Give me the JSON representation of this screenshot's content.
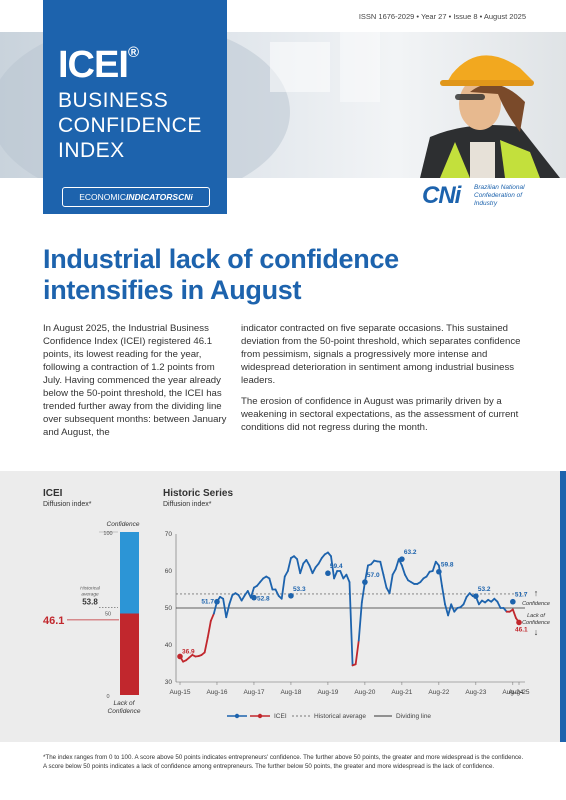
{
  "header": {
    "issn_line": "ISSN 1676-2029 • Year 27 • Issue 8 • August 2025",
    "brand": {
      "main": "ICEI",
      "reg": "®",
      "line1": "BUSINESS",
      "line2": "CONFIDENCE",
      "line3": "INDEX"
    },
    "econ_label_a": "ECONOMIC",
    "econ_label_b": "INDICATORS",
    "econ_label_c": "CNi",
    "cni_logo": "CNi",
    "cni_name": "Brazilian National Confederation of Industry"
  },
  "headline": "Industrial lack of confidence intensifies in August",
  "body": {
    "col1_p1": "In August 2025, the Industrial Business Confidence Index (ICEI) registered 46.1 points, its lowest reading for the year, following a contraction of 1.2 points from July. Having commenced the year already below the 50-point threshold, the ICEI has trended further away from the dividing line over subsequent months: between January and August, the",
    "col2_p1": "indicator contracted on five separate occasions. This sustained deviation from the 50-point threshold, which separates confidence from pessimism, signals a progressively more intense and widespread deterioration in sentiment among industrial business leaders.",
    "col2_p2": "The erosion of confidence in August was primarily driven by a weakening in sectoral expectations, as the assessment of current conditions did not regress during the month."
  },
  "gauge": {
    "title": "ICEI",
    "subtitle": "Diffusion index*",
    "top_label": "Confidence",
    "bottom_label_1": "Lack of",
    "bottom_label_2": "Confidence",
    "tick_100": "100",
    "tick_50": "50",
    "tick_0": "0",
    "hist_label_1": "Historical",
    "hist_label_2": "average",
    "hist_value": "53.8",
    "current_value": "46.1",
    "current_fraction": 0.461,
    "hist_fraction": 0.538
  },
  "historic": {
    "title": "Historic Series",
    "subtitle": "Diffusion index*",
    "legend_icei": "ICEI",
    "legend_hist": "Historical average",
    "legend_div": "Dividing line",
    "arrow_up_label": "Confidence",
    "arrow_down_label_1": "Lack of",
    "arrow_down_label_2": "Confidence"
  },
  "chart_data": {
    "type": "line",
    "xlabel": "",
    "ylabel": "",
    "ylim": [
      30,
      70
    ],
    "yticks": [
      "30",
      "40",
      "50",
      "60",
      "70"
    ],
    "x_tick_labels": [
      "Aug-15",
      "Aug-16",
      "Aug-17",
      "Aug-18",
      "Aug-19",
      "Aug-20",
      "Aug-21",
      "Aug-22",
      "Aug-23",
      "Aug-24",
      "Aug-25"
    ],
    "historical_average": 53.8,
    "dividing_line": 50,
    "grid": false,
    "legend_position": "bottom",
    "colors": {
      "above": "#1d63ad",
      "below": "#c1272d",
      "hist": "#777777",
      "divider": "#333333"
    },
    "series": [
      {
        "name": "ICEI",
        "start": "Aug-15",
        "values": [
          36.9,
          35.5,
          35.9,
          36.6,
          37.3,
          36.9,
          37.0,
          37.3,
          38.0,
          42.0,
          46.5,
          48.5,
          51.7,
          53.0,
          52.5,
          47.5,
          51.0,
          53.5,
          54.0,
          53.5,
          52.0,
          53.4,
          54.6,
          52.8,
          55.5,
          56.0,
          57.0,
          58.0,
          58.5,
          58.0,
          55.0,
          55.0,
          53.3,
          52.5,
          58.5,
          60.0,
          63.5,
          64.0,
          63.2,
          59.4,
          62.0,
          63.0,
          61.5,
          59.4,
          61.0,
          62.0,
          63.5,
          64.5,
          65.0,
          64.0,
          58.0,
          60.0,
          60.0,
          58.0,
          59.0,
          57.0,
          34.5,
          34.8,
          41.2,
          51.5,
          57.0,
          61.5,
          61.8,
          62.8,
          62.6,
          62.5,
          59.0,
          55.5,
          54.0,
          59.0,
          60.5,
          63.2,
          61.5,
          59.0,
          57.5,
          57.0,
          56.5,
          56.5,
          57.0,
          58.0,
          58.5,
          59.8,
          60.0,
          62.5,
          61.5,
          56.0,
          51.0,
          48.0,
          51.0,
          49.0,
          50.0,
          50.2,
          51.0,
          53.0,
          54.0,
          53.2,
          53.1,
          51.0,
          52.0,
          51.5,
          52.2,
          51.7,
          52.5,
          51.7,
          50.0,
          50.0,
          49.0,
          49.0,
          49.6,
          47.3,
          46.1
        ]
      }
    ],
    "point_labels": [
      {
        "date": "Aug-15",
        "value": "36.9"
      },
      {
        "date": "Aug-16",
        "value": "51.7"
      },
      {
        "date": "Aug-17",
        "value": "52.8"
      },
      {
        "date": "Aug-18",
        "value": "53.3"
      },
      {
        "date": "Aug-19",
        "value": "59.4"
      },
      {
        "date": "Aug-20",
        "value": "57.0"
      },
      {
        "date": "Aug-21",
        "value": "63.2"
      },
      {
        "date": "Aug-22",
        "value": "59.8"
      },
      {
        "date": "Aug-23",
        "value": "53.2"
      },
      {
        "date": "Aug-24",
        "value": "51.7"
      },
      {
        "date": "Aug-25",
        "value": "46.1"
      }
    ]
  },
  "footnote": {
    "line1": "*The index ranges from 0 to 100. A score above 50 points indicates entrepreneurs' confidence. The further above 50 points, the greater and more widespread is the confidence.",
    "line2": "A score below 50 points indicates a lack of confidence among entrepreneurs. The further below 50 points, the greater and more widespread is the lack of confidence."
  }
}
